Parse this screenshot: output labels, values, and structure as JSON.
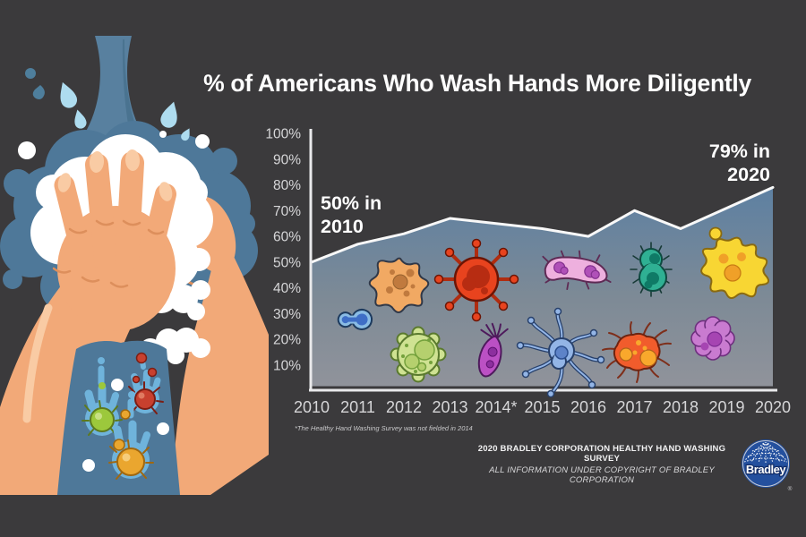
{
  "page": {
    "background": "#3b3a3c",
    "title": "% of Americans Who Wash Hands More Diligently"
  },
  "chart_data": {
    "type": "area",
    "title": "% of Americans Who Wash Hands More Diligently",
    "x_labels": [
      "2010",
      "2011",
      "2012",
      "2013",
      "2014*",
      "2015",
      "2016",
      "2017",
      "2018",
      "2019",
      "2020"
    ],
    "years": [
      2010,
      2011,
      2012,
      2013,
      2014,
      2015,
      2016,
      2017,
      2018,
      2019,
      2020
    ],
    "values": [
      50,
      57,
      61,
      67,
      null,
      63,
      60,
      70,
      63,
      71,
      79
    ],
    "value_note": "2014 value is null because the survey was not fielded that year; the line connects 2013 directly to 2015",
    "ylim": [
      0,
      100
    ],
    "y_tick_labels": [
      "100%",
      "90%",
      "80%",
      "70%",
      "60%",
      "50%",
      "40%",
      "30%",
      "20%",
      "10%"
    ],
    "y_tick_values": [
      100,
      90,
      80,
      70,
      60,
      50,
      40,
      30,
      20,
      10
    ],
    "grid": false,
    "legend": false,
    "annotations": {
      "start": {
        "label": "50% in\n2010",
        "year": 2010,
        "value": 50
      },
      "end": {
        "label": "79% in\n2020",
        "year": 2020,
        "value": 79
      }
    },
    "footnote": "*The Healthy Hand Washing Survey  was not fielded in 2014",
    "colors": {
      "area_gradient_top": "#5d80a2",
      "area_gradient_mid": "#7d8a96",
      "area_gradient_bottom": "#90939b",
      "area_outline": "#f8f8f8",
      "axis": "#e9e9eb",
      "tick_label": "#d6d6d8",
      "annotation_text": "#ffffff"
    },
    "germ_icons": [
      {
        "name": "blue-peanut-germ-icon",
        "color": "#8abce4"
      },
      {
        "name": "orange-star-amoeba-icon",
        "color": "#f1a963"
      },
      {
        "name": "red-virus-icon",
        "color": "#e8431e"
      },
      {
        "name": "pink-bacteria-icon",
        "color": "#eeb0de"
      },
      {
        "name": "teal-ciliate-germ-icon",
        "color": "#2fb093"
      },
      {
        "name": "yellow-splat-germ-icon",
        "color": "#f8d633"
      },
      {
        "name": "green-gear-germ-icon",
        "color": "#cfe292"
      },
      {
        "name": "purple-protozoa-icon",
        "color": "#bb50c4"
      },
      {
        "name": "periwinkle-spider-germ-icon",
        "color": "#93b5e6"
      },
      {
        "name": "orange-fuzzy-germ-icon",
        "color": "#f15c2c"
      },
      {
        "name": "orchid-flower-germ-icon",
        "color": "#c97bd0"
      }
    ]
  },
  "illustration": {
    "name": "hand-washing-illustration",
    "colors": {
      "water": "#4e7899",
      "water_stream": "#58809f",
      "splash_light": "#aedcef",
      "splash_inner": "#6fb3db",
      "skin": "#f2a978",
      "skin_highlight": "#f9cba4",
      "foam": "#ffffff",
      "germ_green": "#9cc83c",
      "germ_red": "#c8402e",
      "germ_yellow": "#eaa62f"
    }
  },
  "footer": {
    "line1": "2020 BRADLEY CORPORATION HEALTHY HAND WASHING SURVEY",
    "line2": "ALL INFORMATION UNDER COPYRIGHT OF BRADLEY CORPORATION"
  },
  "logo": {
    "text": "Bradley",
    "registered": "®",
    "color": "#24509e"
  }
}
